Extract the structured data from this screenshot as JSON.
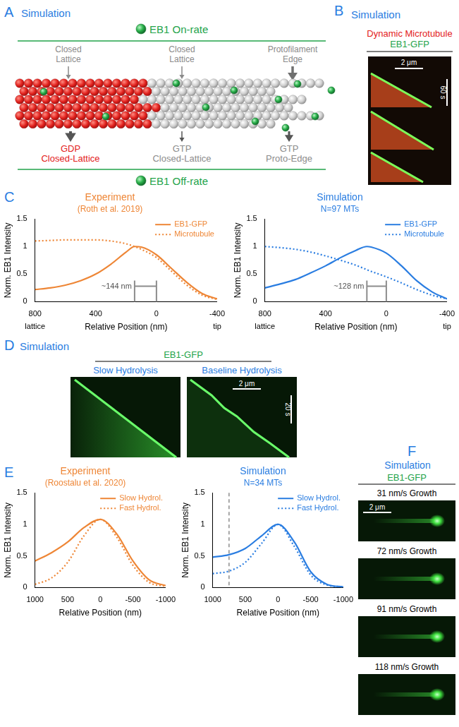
{
  "panels": {
    "A": {
      "letter": "A",
      "label": "Simulation",
      "on_rate": "EB1 On-rate",
      "off_rate": "EB1 Off-rate",
      "binding_sites": [
        [
          "Closed",
          "Lattice"
        ],
        [
          "Closed",
          "Lattice"
        ],
        [
          "Protofilament",
          "Edge"
        ]
      ],
      "states": [
        {
          "text": [
            "GDP",
            "Closed-Lattice"
          ],
          "color": "#e3211c"
        },
        {
          "text": [
            "GTP",
            "Closed-Lattice"
          ],
          "color": "#8c8c8c"
        },
        {
          "text": [
            "GTP",
            "Proto-Edge"
          ],
          "color": "#8c8c8c"
        }
      ]
    },
    "B": {
      "letter": "B",
      "label": "Simulation",
      "title_lines": [
        {
          "text": "Dynamic Microtubule",
          "color": "#e3211c"
        },
        {
          "text": "EB1-GFP",
          "color": "#22a34a"
        }
      ],
      "scale_x": "2 μm",
      "scale_t": "60 s"
    },
    "C": {
      "letter": "C"
    },
    "D": {
      "letter": "D",
      "label": "Simulation",
      "header": "EB1-GFP",
      "kymographs": [
        "Slow Hydrolysis",
        "Baseline Hydrolysis"
      ],
      "scale_x": "2 μm",
      "scale_t": "20 s"
    },
    "E": {
      "letter": "E"
    },
    "F": {
      "letter": "F",
      "label": "Simulation",
      "header": "EB1-GFP",
      "images": [
        "31 nm/s Growth",
        "72 nm/s Growth",
        "91 nm/s Growth",
        "118 nm/s Growth"
      ],
      "scale_x": "2 μm"
    }
  },
  "chart_data": [
    {
      "type": "line",
      "title": "Experiment",
      "subtitle": "(Roth et al. 2019)",
      "color": "#ee8636",
      "x_label": "Relative Position (nm)",
      "y_label": "Norm. EB1 Intensity",
      "x_end_labels": [
        "lattice",
        "tip"
      ],
      "xlim": [
        800,
        -400
      ],
      "xticks": [
        800,
        400,
        0,
        -400
      ],
      "ylim": [
        0,
        1.5
      ],
      "yticks": [
        0,
        0.5,
        1,
        1.5
      ],
      "grid": false,
      "legend": "top-right",
      "x": [
        800,
        700,
        600,
        500,
        400,
        300,
        200,
        144,
        100,
        0,
        -100,
        -200,
        -300,
        -400
      ],
      "series": [
        {
          "name": "EB1-GFP",
          "color": "#ee8636",
          "line_style": "solid",
          "values": [
            0.22,
            0.25,
            0.3,
            0.38,
            0.5,
            0.68,
            0.9,
            1.0,
            0.99,
            0.85,
            0.6,
            0.35,
            0.15,
            0.05
          ]
        },
        {
          "name": "Microtubule",
          "color": "#ee8636",
          "line_style": "dotted",
          "values": [
            1.1,
            1.11,
            1.12,
            1.12,
            1.12,
            1.1,
            1.05,
            1.0,
            0.95,
            0.8,
            0.55,
            0.3,
            0.12,
            0.04
          ]
        }
      ],
      "bracket": {
        "label": "~144 nm",
        "from": 144,
        "to": 0,
        "y": 0.28
      }
    },
    {
      "type": "line",
      "title": "Simulation",
      "subtitle": "N=97 MTs",
      "color": "#2a7de1",
      "x_label": "Relative Position (nm)",
      "y_label": "Norm. EB1 Intensity",
      "x_end_labels": [
        "lattice",
        "tip"
      ],
      "xlim": [
        800,
        -400
      ],
      "xticks": [
        800,
        400,
        0,
        -400
      ],
      "ylim": [
        0,
        1.5
      ],
      "yticks": [
        0,
        0.5,
        1,
        1.5
      ],
      "grid": false,
      "legend": "top-right",
      "x": [
        800,
        700,
        600,
        500,
        400,
        300,
        200,
        128,
        100,
        0,
        -100,
        -200,
        -300,
        -400
      ],
      "series": [
        {
          "name": "EB1-GFP",
          "color": "#2a7de1",
          "line_style": "solid",
          "values": [
            0.25,
            0.32,
            0.4,
            0.52,
            0.65,
            0.8,
            0.93,
            1.0,
            0.99,
            0.88,
            0.65,
            0.38,
            0.18,
            0.05
          ]
        },
        {
          "name": "Microtubule",
          "color": "#2a7de1",
          "line_style": "dotted",
          "values": [
            1.0,
            0.98,
            0.95,
            0.9,
            0.83,
            0.75,
            0.66,
            0.58,
            0.55,
            0.45,
            0.34,
            0.22,
            0.12,
            0.05
          ]
        }
      ],
      "bracket": {
        "label": "~128 nm",
        "from": 128,
        "to": 0,
        "y": 0.28
      }
    },
    {
      "type": "line",
      "title": "Experiment",
      "subtitle": "(Roostalu et al. 2020)",
      "color": "#ee8636",
      "x_label": "Relative Position (nm)",
      "y_label": "Norm. EB1 Intensity",
      "xlim": [
        1000,
        -1000
      ],
      "xticks": [
        1000,
        500,
        0,
        -500,
        -1000
      ],
      "ylim": [
        0,
        1.5
      ],
      "yticks": [
        0,
        0.5,
        1,
        1.5
      ],
      "grid": false,
      "legend": "top-right",
      "x": [
        1000,
        750,
        500,
        250,
        0,
        -250,
        -500,
        -750,
        -1000
      ],
      "series": [
        {
          "name": "Slow Hydrol.",
          "color": "#ee8636",
          "line_style": "solid",
          "values": [
            0.42,
            0.55,
            0.72,
            0.95,
            1.08,
            0.85,
            0.42,
            0.12,
            0.03
          ]
        },
        {
          "name": "Fast Hydrol.",
          "color": "#ee8636",
          "line_style": "dotted",
          "values": [
            0.05,
            0.15,
            0.4,
            0.82,
            1.08,
            0.8,
            0.35,
            0.08,
            0.02
          ]
        }
      ]
    },
    {
      "type": "line",
      "title": "Simulation",
      "subtitle": "N=34 MTs",
      "color": "#2a7de1",
      "x_label": "Relative Position (nm)",
      "y_label": "Norm. EB1 Intensity",
      "xlim": [
        1000,
        -1000
      ],
      "xticks": [
        1000,
        500,
        0,
        -500,
        -1000
      ],
      "ylim": [
        0,
        1.5
      ],
      "yticks": [
        0,
        0.5,
        1,
        1.5
      ],
      "grid": false,
      "legend": "top-right",
      "x": [
        1000,
        750,
        500,
        250,
        0,
        -250,
        -500,
        -750,
        -1000
      ],
      "series": [
        {
          "name": "Slow Hydrol.",
          "color": "#2a7de1",
          "line_style": "solid",
          "values": [
            0.48,
            0.52,
            0.62,
            0.82,
            1.0,
            0.72,
            0.25,
            0.05,
            0.01
          ]
        },
        {
          "name": "Fast Hydrol.",
          "color": "#2a7de1",
          "line_style": "dotted",
          "values": [
            0.22,
            0.26,
            0.4,
            0.7,
            1.0,
            0.65,
            0.2,
            0.04,
            0.01
          ]
        }
      ],
      "reference_line": {
        "x": 750
      }
    }
  ]
}
